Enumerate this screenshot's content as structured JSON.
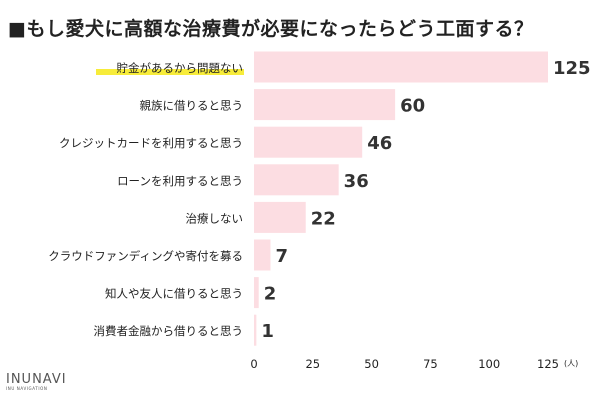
{
  "chart_data": {
    "type": "bar",
    "orientation": "horizontal",
    "title": "■もし愛犬に高額な治療費が必要になったらどう工面する？",
    "categories": [
      "貯金があるから問題ない",
      "親族に借りると思う",
      "クレジットカードを利用すると思う",
      "ローンを利用すると思う",
      "治療しない",
      "クラウドファンディングや寄付を募る",
      "知人や友人に借りると思う",
      "消費者金融から借りると思う"
    ],
    "values": [
      125,
      60,
      46,
      36,
      22,
      7,
      2,
      1
    ],
    "xticks": [
      "0",
      "25",
      "50",
      "75",
      "100",
      "125"
    ],
    "xlim": [
      0,
      125
    ],
    "unit": "(人)",
    "highlighted_category_index": 0,
    "grid": false,
    "legend": "none"
  },
  "colors": {
    "bar": "#fcdde2",
    "highlight": "#f7ec3a",
    "text": "#222222",
    "value_text": "#333333"
  },
  "brand": {
    "logo": "INUNAVI",
    "tagline": "INU NAVIGATION"
  }
}
